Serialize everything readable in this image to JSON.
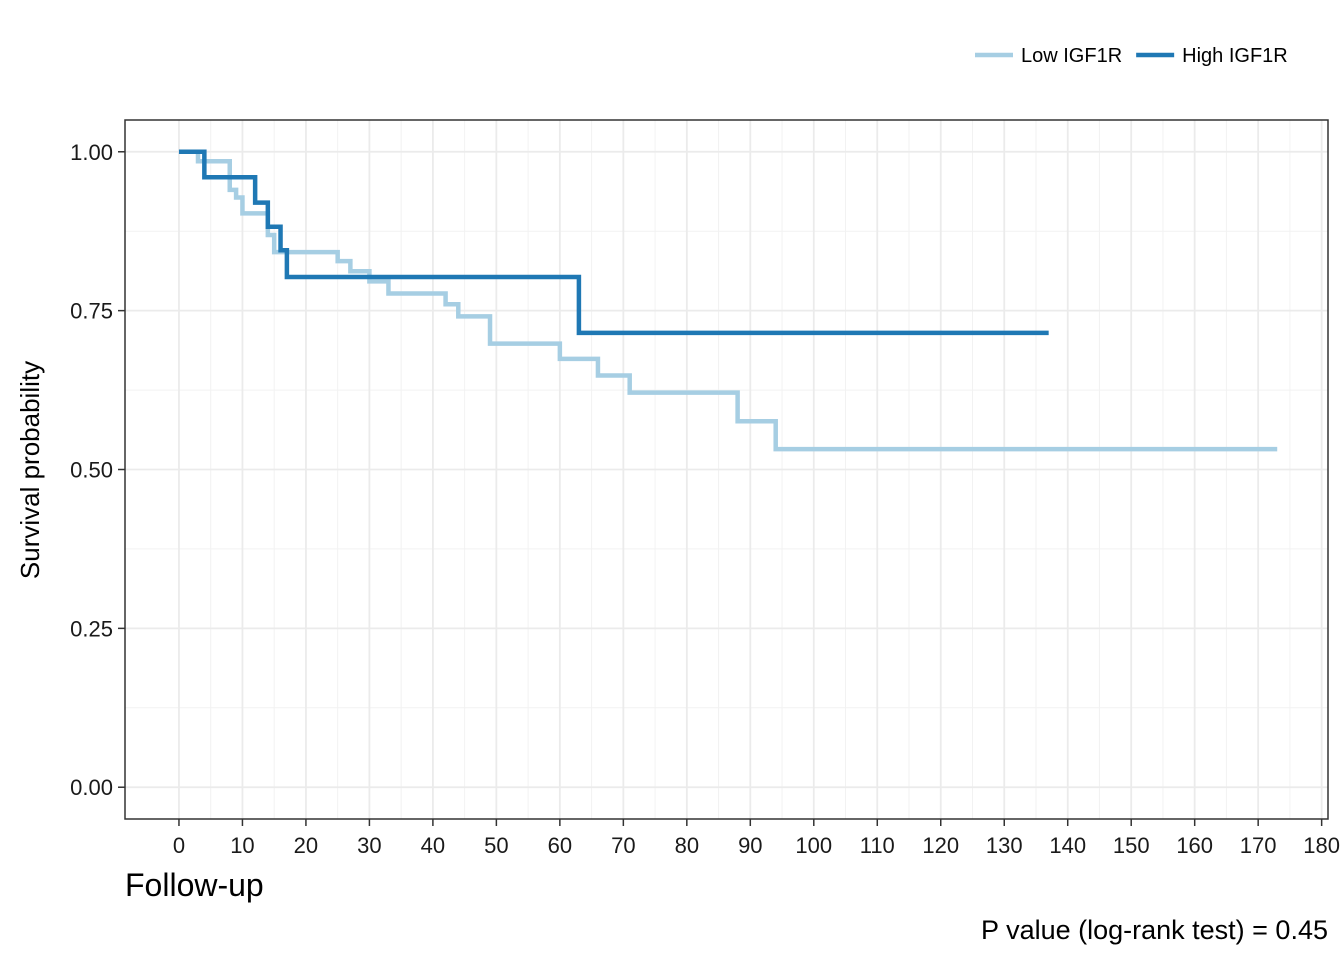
{
  "chart_data": {
    "type": "line",
    "subtype": "kaplan-meier",
    "title": "",
    "xlabel": "Follow-up",
    "ylabel": "Survival probability",
    "xlim": [
      -8.5,
      181
    ],
    "ylim": [
      -0.05,
      1.05
    ],
    "x_ticks": [
      0,
      10,
      20,
      30,
      40,
      50,
      60,
      70,
      80,
      90,
      100,
      110,
      120,
      130,
      140,
      150,
      160,
      170,
      180
    ],
    "x_tick_labels": [
      "0",
      "10",
      "20",
      "30",
      "40",
      "50",
      "60",
      "70",
      "80",
      "90",
      "100",
      "110",
      "120",
      "130",
      "140",
      "150",
      "160",
      "170",
      "180"
    ],
    "y_ticks": [
      0,
      0.25,
      0.5,
      0.75,
      1.0
    ],
    "y_tick_labels": [
      "0.00",
      "0.25",
      "0.50",
      "0.75",
      "1.00"
    ],
    "grid": true,
    "legend_position": "top-right",
    "annotation": "P value (log-rank test) = 0.45",
    "series": [
      {
        "name": "Low IGF1R",
        "color": "#a6cee3",
        "x": [
          0,
          3,
          8,
          9,
          10,
          14,
          15,
          25,
          27,
          30,
          33,
          42,
          44,
          49,
          60,
          66,
          71,
          88,
          94,
          173
        ],
        "y": [
          1.0,
          0.985,
          0.94,
          0.928,
          0.903,
          0.869,
          0.842,
          0.828,
          0.812,
          0.796,
          0.777,
          0.76,
          0.741,
          0.698,
          0.674,
          0.648,
          0.621,
          0.576,
          0.532,
          0.532
        ]
      },
      {
        "name": "High IGF1R",
        "color": "#1f78b4",
        "x": [
          0,
          4,
          12,
          14,
          16,
          17,
          63,
          137
        ],
        "y": [
          1.0,
          0.96,
          0.92,
          0.882,
          0.845,
          0.803,
          0.715,
          0.715
        ]
      }
    ]
  }
}
